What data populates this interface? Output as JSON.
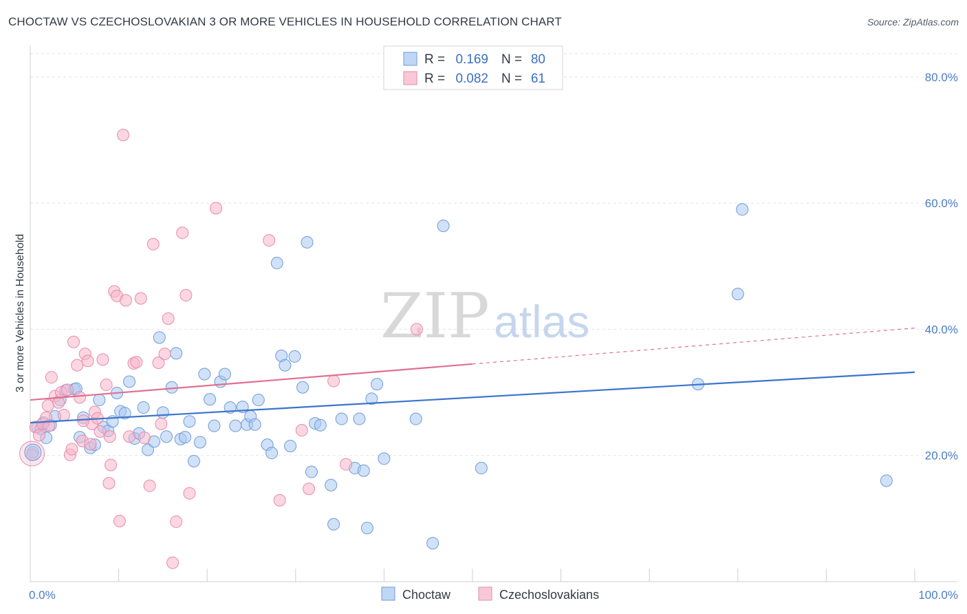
{
  "header": {
    "title": "CHOCTAW VS CZECHOSLOVAKIAN 3 OR MORE VEHICLES IN HOUSEHOLD CORRELATION CHART",
    "source": "Source: ZipAtlas.com"
  },
  "watermark": {
    "zip": "ZIP",
    "atlas": "atlas"
  },
  "legend": {
    "r_label": "R =",
    "n_label": "N =",
    "entries": [
      {
        "r": "0.169",
        "n": "80",
        "color": "#a9c8f2"
      },
      {
        "r": "0.082",
        "n": "61",
        "color": "#f7b6cb"
      }
    ]
  },
  "chart_data": {
    "type": "scatter",
    "ylabel": "3 or more Vehicles in Household",
    "xlim": [
      0,
      100
    ],
    "ylim": [
      0,
      85
    ],
    "x_tick_labels": [
      "0.0%",
      "100.0%"
    ],
    "y_ticks": [
      20,
      40,
      60,
      80
    ],
    "y_tick_labels": [
      "20.0%",
      "40.0%",
      "60.0%",
      "80.0%"
    ],
    "grid": true,
    "legend_position": "top-center",
    "series": [
      {
        "name": "Choctaw",
        "color": "#a9c8f2",
        "stroke": "#6f9bd8",
        "trend_color": "#3a74cc",
        "trend": {
          "x0": 0,
          "y0": 25.2,
          "x1": 100,
          "y1": 33.2
        },
        "points": [
          [
            0.3,
            20.5
          ],
          [
            0.8,
            24.5
          ],
          [
            1.2,
            24.2
          ],
          [
            1.8,
            22.8
          ],
          [
            2.3,
            24.8
          ],
          [
            2.8,
            26.2
          ],
          [
            3.4,
            28.8
          ],
          [
            4.0,
            30.3
          ],
          [
            5.0,
            30.5
          ],
          [
            5.6,
            22.9
          ],
          [
            6.0,
            26.0
          ],
          [
            6.8,
            21.2
          ],
          [
            7.3,
            21.7
          ],
          [
            7.8,
            28.8
          ],
          [
            8.3,
            24.5
          ],
          [
            8.8,
            23.9
          ],
          [
            9.3,
            25.4
          ],
          [
            9.8,
            29.9
          ],
          [
            10.2,
            27.0
          ],
          [
            10.7,
            26.7
          ],
          [
            11.2,
            31.7
          ],
          [
            11.8,
            22.7
          ],
          [
            12.3,
            23.5
          ],
          [
            12.8,
            27.6
          ],
          [
            13.3,
            20.9
          ],
          [
            14.0,
            22.2
          ],
          [
            14.6,
            38.7
          ],
          [
            15.0,
            26.8
          ],
          [
            15.4,
            23.0
          ],
          [
            16.0,
            30.8
          ],
          [
            16.5,
            36.2
          ],
          [
            17.0,
            22.6
          ],
          [
            17.5,
            22.9
          ],
          [
            18.0,
            25.4
          ],
          [
            18.5,
            19.1
          ],
          [
            19.2,
            22.1
          ],
          [
            19.7,
            32.9
          ],
          [
            20.3,
            28.9
          ],
          [
            20.8,
            24.7
          ],
          [
            21.5,
            31.7
          ],
          [
            22.0,
            32.9
          ],
          [
            22.6,
            27.6
          ],
          [
            23.2,
            24.7
          ],
          [
            24.0,
            27.7
          ],
          [
            24.5,
            24.9
          ],
          [
            24.9,
            26.2
          ],
          [
            25.4,
            24.9
          ],
          [
            25.8,
            28.8
          ],
          [
            26.8,
            21.7
          ],
          [
            27.3,
            20.4
          ],
          [
            27.9,
            50.5
          ],
          [
            28.4,
            35.8
          ],
          [
            28.8,
            34.3
          ],
          [
            29.4,
            21.5
          ],
          [
            29.9,
            35.7
          ],
          [
            30.8,
            30.8
          ],
          [
            31.3,
            53.8
          ],
          [
            31.8,
            17.4
          ],
          [
            32.2,
            25.1
          ],
          [
            32.8,
            24.8
          ],
          [
            34.0,
            15.3
          ],
          [
            34.3,
            9.1
          ],
          [
            35.2,
            25.8
          ],
          [
            36.7,
            18.0
          ],
          [
            37.2,
            25.8
          ],
          [
            37.7,
            17.6
          ],
          [
            38.1,
            8.5
          ],
          [
            38.6,
            29.0
          ],
          [
            39.2,
            31.3
          ],
          [
            40.0,
            19.5
          ],
          [
            43.6,
            25.8
          ],
          [
            45.5,
            6.1
          ],
          [
            46.7,
            56.4
          ],
          [
            51.0,
            18.0
          ],
          [
            75.5,
            31.3
          ],
          [
            80.0,
            45.6
          ],
          [
            80.5,
            59.0
          ],
          [
            96.8,
            16.0
          ],
          [
            1.5,
            25.2
          ],
          [
            5.2,
            30.6
          ]
        ]
      },
      {
        "name": "Czechoslovakians",
        "color": "#f7b6cb",
        "stroke": "#e88aa9",
        "trend_color": "#e0708f",
        "trend": {
          "x0": 0,
          "y0": 28.8,
          "x1": 50,
          "y1": 34.5
        },
        "trend_dashed": {
          "x0": 50,
          "y0": 34.5,
          "x1": 100,
          "y1": 40.2
        },
        "points": [
          [
            0.2,
            20.1
          ],
          [
            0.6,
            24.5
          ],
          [
            1.0,
            23.2
          ],
          [
            1.4,
            25.0
          ],
          [
            1.8,
            26.0
          ],
          [
            2.0,
            27.9
          ],
          [
            2.4,
            32.4
          ],
          [
            2.8,
            29.4
          ],
          [
            3.2,
            28.4
          ],
          [
            3.5,
            30.0
          ],
          [
            3.8,
            26.4
          ],
          [
            4.2,
            30.4
          ],
          [
            4.5,
            20.1
          ],
          [
            4.7,
            21.0
          ],
          [
            4.9,
            38.0
          ],
          [
            5.3,
            34.3
          ],
          [
            5.6,
            29.2
          ],
          [
            5.9,
            22.3
          ],
          [
            6.2,
            36.1
          ],
          [
            6.5,
            35.0
          ],
          [
            6.8,
            21.8
          ],
          [
            7.0,
            25.0
          ],
          [
            7.3,
            26.9
          ],
          [
            7.6,
            25.9
          ],
          [
            7.9,
            23.8
          ],
          [
            8.2,
            35.2
          ],
          [
            8.6,
            31.2
          ],
          [
            8.9,
            15.6
          ],
          [
            9.1,
            18.5
          ],
          [
            9.5,
            46.0
          ],
          [
            9.8,
            45.3
          ],
          [
            10.1,
            9.6
          ],
          [
            10.5,
            70.8
          ],
          [
            10.8,
            44.6
          ],
          [
            11.2,
            23.0
          ],
          [
            11.7,
            34.6
          ],
          [
            12.0,
            34.8
          ],
          [
            12.5,
            44.9
          ],
          [
            12.9,
            22.8
          ],
          [
            13.5,
            15.2
          ],
          [
            13.9,
            53.5
          ],
          [
            14.5,
            34.7
          ],
          [
            14.8,
            25.0
          ],
          [
            15.2,
            36.1
          ],
          [
            15.6,
            41.7
          ],
          [
            16.1,
            3.0
          ],
          [
            16.5,
            9.5
          ],
          [
            17.2,
            55.3
          ],
          [
            17.6,
            45.4
          ],
          [
            18.0,
            14.0
          ],
          [
            21.0,
            59.2
          ],
          [
            27.0,
            54.1
          ],
          [
            28.2,
            12.9
          ],
          [
            30.7,
            24.0
          ],
          [
            31.5,
            14.7
          ],
          [
            34.3,
            31.8
          ],
          [
            35.7,
            18.6
          ],
          [
            43.7,
            40.0
          ],
          [
            2.1,
            24.7
          ],
          [
            6.0,
            25.5
          ],
          [
            9.0,
            23.0
          ]
        ]
      }
    ]
  }
}
